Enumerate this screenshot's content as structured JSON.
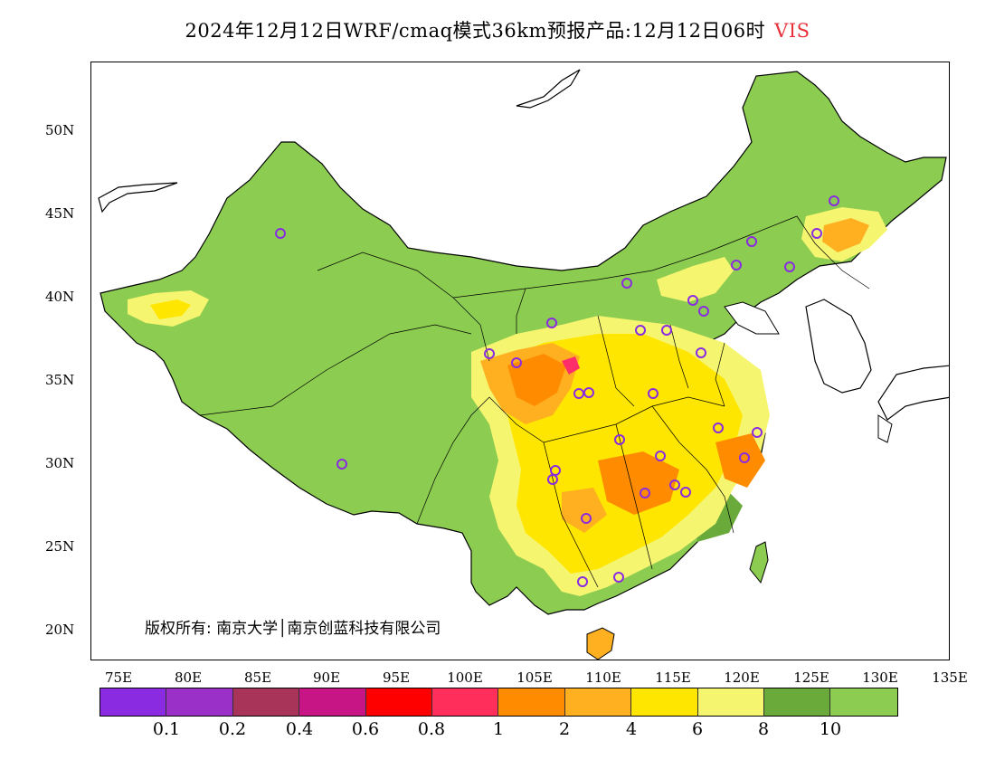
{
  "title": {
    "text": "2024年12月12日WRF/cmaq模式36km预报产品:12月12日06时",
    "variable": "VIS"
  },
  "map": {
    "lon_range": [
      73,
      135
    ],
    "lat_range": [
      18,
      54
    ],
    "lat_labels": [
      "50N",
      "45N",
      "40N",
      "35N",
      "30N",
      "25N",
      "20N"
    ],
    "lon_labels": [
      "75E",
      "80E",
      "85E",
      "90E",
      "95E",
      "100E",
      "105E",
      "110E",
      "115E",
      "120E",
      "125E",
      "130E",
      "135E"
    ],
    "land_color": "#8ccc50",
    "colors": {
      "dark_green": "#6aaa3a",
      "light_yellow": "#f5f570",
      "yellow": "#ffe600",
      "light_orange": "#ffb020",
      "orange": "#ff8c00",
      "pink": "#ff2e6a"
    }
  },
  "stations_count": 32,
  "copyright": "版权所有: 南京大学│南京创蓝科技有限公司",
  "legend": {
    "colors": [
      "#8a2be2",
      "#9b30c8",
      "#a8345a",
      "#c71585",
      "#ff0000",
      "#ff2e5a",
      "#ff8c00",
      "#ffb020",
      "#ffe600",
      "#f5f570",
      "#6aaa3a",
      "#8ccc50"
    ],
    "labels": [
      "0.1",
      "0.2",
      "0.4",
      "0.6",
      "0.8",
      "1",
      "2",
      "4",
      "6",
      "8",
      "10"
    ]
  }
}
